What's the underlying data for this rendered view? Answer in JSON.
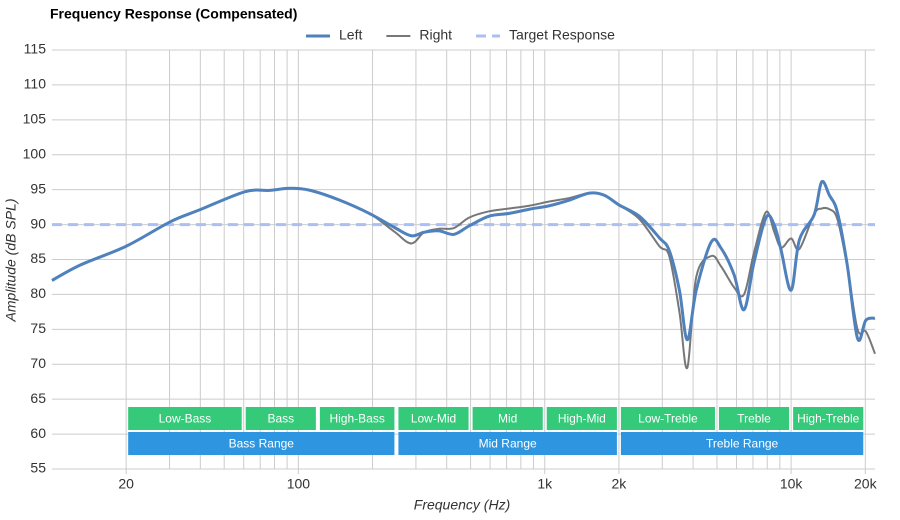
{
  "chart_data": {
    "type": "line",
    "title": "Frequency Response (Compensated)",
    "x_label": "Frequency (Hz)",
    "y_label": "Amplitude (dB SPL)",
    "x_scale": "log",
    "xlim": [
      10,
      21900
    ],
    "ylim": [
      55,
      115
    ],
    "yticks": [
      55,
      60,
      65,
      70,
      75,
      80,
      85,
      90,
      95,
      100,
      105,
      110,
      115
    ],
    "xticks": [
      20,
      100,
      {
        "value": 1000,
        "label": "1k"
      },
      {
        "value": 2000,
        "label": "2k"
      },
      {
        "value": 10000,
        "label": "10k"
      },
      {
        "value": 20000,
        "label": "20k"
      }
    ],
    "xgrid": [
      20,
      30,
      40,
      50,
      60,
      70,
      80,
      90,
      100,
      200,
      300,
      400,
      500,
      600,
      700,
      800,
      900,
      1000,
      2000,
      3000,
      4000,
      5000,
      6000,
      7000,
      8000,
      9000,
      10000,
      20000
    ],
    "grid": true,
    "legend": "top",
    "x": [
      10,
      13,
      20,
      30.2,
      39.7,
      60.6,
      76.4,
      92.6,
      111.9,
      147,
      194,
      245,
      287,
      324,
      372,
      428,
      493,
      594,
      717,
      865,
      1043,
      1257,
      1516,
      1744,
      2005,
      2420,
      2920,
      3200,
      3520,
      3790,
      4120,
      4740,
      5200,
      5870,
      6440,
      7070,
      7910,
      8530,
      9110,
      10000,
      10800,
      12400,
      13300,
      14300,
      15400,
      16900,
      18600,
      20100,
      21900
    ],
    "series": [
      {
        "name": "Left",
        "color": "#4f81bd",
        "width": 3,
        "values": [
          82.0,
          84.2,
          86.9,
          90.4,
          92.1,
          94.7,
          94.9,
          95.2,
          94.9,
          93.5,
          91.6,
          89.6,
          88.4,
          88.9,
          89.1,
          88.6,
          89.8,
          91.2,
          91.6,
          92.2,
          92.7,
          93.5,
          94.5,
          94.2,
          92.8,
          91.2,
          88.1,
          86.3,
          80.6,
          73.5,
          80.6,
          87.5,
          86.6,
          82.8,
          77.8,
          84.6,
          91.0,
          90.0,
          86.3,
          80.6,
          87.8,
          91.4,
          96.1,
          94.2,
          91.8,
          84.2,
          73.7,
          76.3,
          76.6
        ]
      },
      {
        "name": "Right",
        "color": "#777777",
        "width": 2,
        "values": [
          82.0,
          84.2,
          86.9,
          90.4,
          92.1,
          94.7,
          94.9,
          95.2,
          94.9,
          93.5,
          91.6,
          89.0,
          87.3,
          88.9,
          89.4,
          89.5,
          91.0,
          91.9,
          92.3,
          92.7,
          93.3,
          93.8,
          94.5,
          94.2,
          92.8,
          90.8,
          86.9,
          85.5,
          77.5,
          69.5,
          82.5,
          85.5,
          84.0,
          81.0,
          80.0,
          86.0,
          91.8,
          89.0,
          86.7,
          88.0,
          86.5,
          91.5,
          92.3,
          92.2,
          90.8,
          84.0,
          75.0,
          74.7,
          71.5
        ]
      },
      {
        "name": "Target Response",
        "color": "#aabff5",
        "width": 3,
        "dashed": true,
        "x": [
          10,
          21900
        ],
        "values": [
          90,
          90
        ]
      }
    ],
    "bands": [
      {
        "name": "Low-Bass",
        "start": 20,
        "end": 60,
        "color": "#35c97a",
        "row": 0
      },
      {
        "name": "Bass",
        "start": 60,
        "end": 120,
        "color": "#35c97a",
        "row": 0
      },
      {
        "name": "High-Bass",
        "start": 120,
        "end": 250,
        "color": "#35c97a",
        "row": 0
      },
      {
        "name": "Low-Mid",
        "start": 250,
        "end": 500,
        "color": "#35c97a",
        "row": 0
      },
      {
        "name": "Mid",
        "start": 500,
        "end": 1000,
        "color": "#35c97a",
        "row": 0
      },
      {
        "name": "High-Mid",
        "start": 1000,
        "end": 2000,
        "color": "#35c97a",
        "row": 0
      },
      {
        "name": "Low-Treble",
        "start": 2000,
        "end": 5000,
        "color": "#35c97a",
        "row": 0
      },
      {
        "name": "Treble",
        "start": 5000,
        "end": 10000,
        "color": "#35c97a",
        "row": 0
      },
      {
        "name": "High-Treble",
        "start": 10000,
        "end": 20000,
        "color": "#35c97a",
        "row": 0
      },
      {
        "name": "Bass Range",
        "start": 20,
        "end": 250,
        "color": "#2e96e0",
        "row": 1
      },
      {
        "name": "Mid Range",
        "start": 250,
        "end": 2000,
        "color": "#2e96e0",
        "row": 1
      },
      {
        "name": "Treble Range",
        "start": 2000,
        "end": 20000,
        "color": "#2e96e0",
        "row": 1
      }
    ]
  }
}
